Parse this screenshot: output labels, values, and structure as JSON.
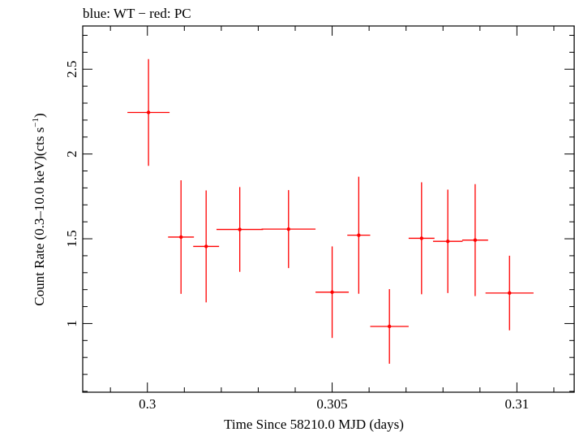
{
  "chart_data": {
    "type": "scatter",
    "title": "blue: WT − red: PC",
    "xlabel": "Time Since 58210.0 MJD (days)",
    "ylabel_main": "Count Rate (0.3–10.0 keV)(cts s",
    "ylabel_sup": "−1",
    "ylabel_end": ")",
    "xlim": [
      0.29825,
      0.31155
    ],
    "ylim": [
      0.595,
      2.755
    ],
    "xticks": [
      0.3,
      0.305,
      0.31
    ],
    "xtick_labels": [
      "0.3",
      "0.305",
      "0.31"
    ],
    "yticks": [
      1,
      1.5,
      2,
      2.5
    ],
    "ytick_labels": [
      "1",
      "1.5",
      "2",
      "2.5"
    ],
    "series": [
      {
        "name": "PC",
        "color": "#ff0000",
        "points": [
          {
            "x": 0.30003,
            "xerr": 0.00057,
            "y": 2.245,
            "yerr": 0.315
          },
          {
            "x": 0.30091,
            "xerr": 0.00035,
            "y": 1.51,
            "yerr": 0.335
          },
          {
            "x": 0.30159,
            "xerr": 0.00035,
            "y": 1.455,
            "yerr": 0.33
          },
          {
            "x": 0.3025,
            "xerr": 0.00063,
            "y": 1.555,
            "yerr": 0.25
          },
          {
            "x": 0.30382,
            "xerr": 0.00073,
            "y": 1.557,
            "yerr": 0.23
          },
          {
            "x": 0.305,
            "xerr": 0.00045,
            "y": 1.185,
            "yerr": 0.27
          },
          {
            "x": 0.30572,
            "xerr": 0.00031,
            "y": 1.521,
            "yerr": 0.345
          },
          {
            "x": 0.30655,
            "xerr": 0.00052,
            "y": 0.983,
            "yerr": 0.22
          },
          {
            "x": 0.30742,
            "xerr": 0.00035,
            "y": 1.503,
            "yerr": 0.33
          },
          {
            "x": 0.30813,
            "xerr": 0.0004,
            "y": 1.485,
            "yerr": 0.305
          },
          {
            "x": 0.30887,
            "xerr": 0.00035,
            "y": 1.492,
            "yerr": 0.33
          },
          {
            "x": 0.3098,
            "xerr": 0.00065,
            "y": 1.18,
            "yerr": 0.22
          }
        ]
      }
    ]
  }
}
